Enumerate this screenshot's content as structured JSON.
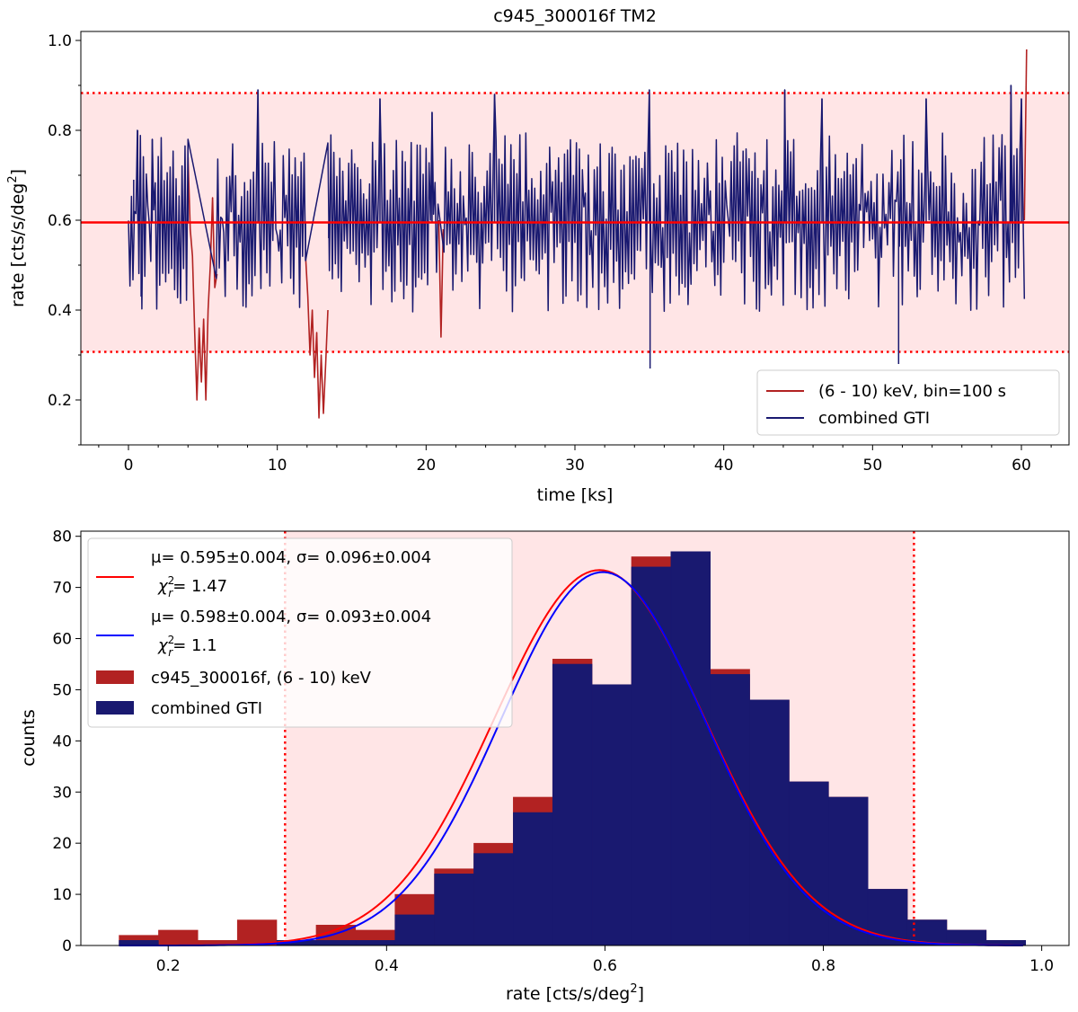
{
  "chart_data": [
    {
      "type": "line",
      "title": "c945_300016f TM2",
      "xlabel": "time [ks]",
      "ylabel_main": "rate [cts/s/deg",
      "ylabel_sup": "2",
      "ylabel_close": "]",
      "xlim": [
        -3.2,
        63.2
      ],
      "ylim": [
        0.1,
        1.02
      ],
      "xticks": [
        0,
        10,
        20,
        30,
        40,
        50,
        60
      ],
      "xtick_labels": [
        "0",
        "10",
        "20",
        "30",
        "40",
        "50",
        "60"
      ],
      "yticks": [
        0.2,
        0.4,
        0.6,
        0.8,
        1.0
      ],
      "ytick_labels": [
        "0.2",
        "0.4",
        "0.6",
        "0.8",
        "1.0"
      ],
      "mean_rate": 0.595,
      "band": [
        0.307,
        0.883
      ],
      "colors": {
        "band": "#ffe5e6",
        "mean": "#ff0000",
        "full": "#b22222",
        "gti": "#191970"
      },
      "legend": [
        "(6 - 10) keV, bin=100 s",
        "combined GTI"
      ],
      "series": [
        {
          "name": "(6 - 10) keV, bin=100 s",
          "color": "#b22222",
          "segments": [
            {
              "x": [
                4.0,
                4.15,
                4.3,
                4.45,
                4.6,
                4.75,
                4.9,
                5.05,
                5.2,
                5.35,
                5.5,
                5.65,
                5.8,
                5.95
              ],
              "y": [
                0.74,
                0.58,
                0.52,
                0.35,
                0.2,
                0.36,
                0.24,
                0.38,
                0.2,
                0.4,
                0.5,
                0.65,
                0.45,
                0.48
              ]
            },
            {
              "x": [
                11.9,
                12.05,
                12.2,
                12.35,
                12.5,
                12.65,
                12.8,
                12.95,
                13.1,
                13.25,
                13.4
              ],
              "y": [
                0.52,
                0.43,
                0.3,
                0.4,
                0.25,
                0.35,
                0.16,
                0.3,
                0.17,
                0.28,
                0.4
              ]
            },
            {
              "x": [
                20.85,
                21.0,
                21.15
              ],
              "y": [
                0.6,
                0.34,
                0.58
              ]
            },
            {
              "x": [
                60.2,
                60.35
              ],
              "y": [
                0.6,
                0.98
              ]
            }
          ]
        },
        {
          "name": "combined GTI",
          "color": "#191970",
          "spikes": [
            {
              "x": 0.35,
              "y": 0.69
            },
            {
              "x": 0.62,
              "y": 0.8
            },
            {
              "x": 0.85,
              "y": 0.43
            },
            {
              "x": 1.6,
              "y": 0.78
            },
            {
              "x": 4.0,
              "y": 0.78
            },
            {
              "x": 8.7,
              "y": 0.89
            },
            {
              "x": 11.9,
              "y": 0.51
            },
            {
              "x": 13.45,
              "y": 0.56
            },
            {
              "x": 16.9,
              "y": 0.87
            },
            {
              "x": 20.4,
              "y": 0.84
            },
            {
              "x": 24.6,
              "y": 0.88
            },
            {
              "x": 35.0,
              "y": 0.89
            },
            {
              "x": 35.05,
              "y": 0.27
            },
            {
              "x": 44.1,
              "y": 0.89
            },
            {
              "x": 46.6,
              "y": 0.87
            },
            {
              "x": 51.75,
              "y": 0.28
            },
            {
              "x": 53.6,
              "y": 0.87
            },
            {
              "x": 59.3,
              "y": 0.9
            },
            {
              "x": 60.0,
              "y": 0.87
            }
          ]
        }
      ]
    },
    {
      "type": "bar",
      "xlabel_main": "rate [cts/s/deg",
      "xlabel_sup": "2",
      "xlabel_close": "]",
      "ylabel": "counts",
      "xlim": [
        0.12,
        1.025
      ],
      "ylim": [
        0,
        81
      ],
      "xticks": [
        0.2,
        0.4,
        0.6,
        0.8,
        1.0
      ],
      "xtick_labels": [
        "0.2",
        "0.4",
        "0.6",
        "0.8",
        "1.0"
      ],
      "yticks": [
        0,
        10,
        20,
        30,
        40,
        50,
        60,
        70,
        80
      ],
      "ytick_labels": [
        "0",
        "10",
        "20",
        "30",
        "40",
        "50",
        "60",
        "70",
        "80"
      ],
      "band": [
        0.307,
        0.883
      ],
      "bin_edges": [
        0.155,
        0.1911,
        0.2272,
        0.2633,
        0.2994,
        0.3355,
        0.3716,
        0.4077,
        0.4438,
        0.4799,
        0.516,
        0.5521,
        0.5882,
        0.6243,
        0.6604,
        0.6965,
        0.7326,
        0.7687,
        0.8048,
        0.8409,
        0.877,
        0.9131,
        0.9492,
        0.9853
      ],
      "series": [
        {
          "name": "c945_300016f, (6 - 10) keV",
          "color": "#b22222",
          "values": [
            2,
            3,
            1,
            5,
            1,
            4,
            3,
            10,
            15,
            20,
            29,
            56,
            51,
            76,
            77,
            54,
            48,
            32,
            29,
            11,
            5,
            3,
            1
          ]
        },
        {
          "name": "combined GTI",
          "color": "#191970",
          "values": [
            1,
            0,
            0,
            0,
            1,
            1,
            1,
            6,
            14,
            18,
            26,
            55,
            51,
            74,
            77,
            53,
            48,
            32,
            29,
            11,
            5,
            3,
            1
          ]
        }
      ],
      "fits": [
        {
          "color": "#ff0000",
          "mu": 0.595,
          "sigma": 0.096,
          "amp": 73.4,
          "label_line1": "μ= 0.595±0.004, σ= 0.096±0.004",
          "label_chi": "χ",
          "label_chi_sub": "r",
          "label_chi_sup": "2",
          "label_chi_val": "= 1.47"
        },
        {
          "color": "#0000ff",
          "mu": 0.598,
          "sigma": 0.093,
          "amp": 73.0,
          "label_line1": "μ= 0.598±0.004, σ= 0.093±0.004",
          "label_chi": "χ",
          "label_chi_sub": "r",
          "label_chi_sup": "2",
          "label_chi_val": "= 1.1"
        }
      ],
      "legend_hist": [
        "c945_300016f, (6 - 10) keV",
        "combined GTI"
      ]
    }
  ]
}
